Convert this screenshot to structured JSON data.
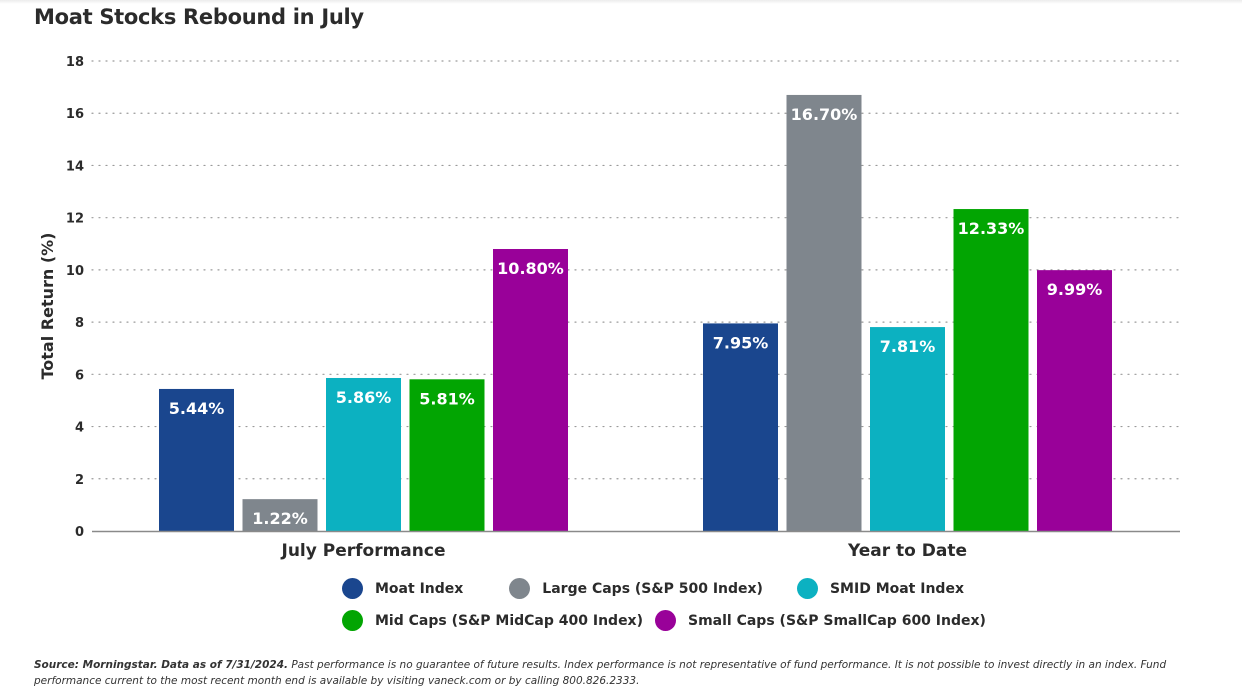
{
  "title": "Moat Stocks Rebound in July",
  "chart_data": {
    "type": "bar",
    "title": "Moat Stocks Rebound in July",
    "xlabel": "",
    "ylabel": "Total Return (%)",
    "ylim": [
      0,
      18
    ],
    "yticks": [
      0,
      2,
      4,
      6,
      8,
      10,
      12,
      14,
      16,
      18
    ],
    "grid": true,
    "legend_position": "bottom",
    "categories": [
      "July Performance",
      "Year to Date"
    ],
    "series": [
      {
        "name": "Moat Index",
        "color": "#1a468e",
        "values": [
          5.44,
          7.95
        ],
        "labels": [
          "5.44%",
          "7.95%"
        ]
      },
      {
        "name": "Large Caps (S&P 500 Index)",
        "color": "#7f868d",
        "values": [
          1.22,
          16.7
        ],
        "labels": [
          "1.22%",
          "16.70%"
        ]
      },
      {
        "name": "SMID Moat Index",
        "color": "#0cb1c1",
        "values": [
          5.86,
          7.81
        ],
        "labels": [
          "5.86%",
          "7.81%"
        ]
      },
      {
        "name": "Mid Caps (S&P MidCap 400 Index)",
        "color": "#02a502",
        "values": [
          5.81,
          12.33
        ],
        "labels": [
          "5.81%",
          "12.33%"
        ]
      },
      {
        "name": "Small Caps (S&P SmallCap 600 Index)",
        "color": "#990199",
        "values": [
          10.8,
          9.99
        ],
        "labels": [
          "10.80%",
          "9.99%"
        ]
      }
    ]
  },
  "footnote": {
    "source_bold": "Source: Morningstar. Data as of 7/31/2024.",
    "text": " Past performance is no guarantee of future results. Index performance is not representative of fund performance. It is not possible to invest directly in an index. Fund performance current to the most recent month end is available by visiting vaneck.com or by calling 800.826.2333."
  }
}
